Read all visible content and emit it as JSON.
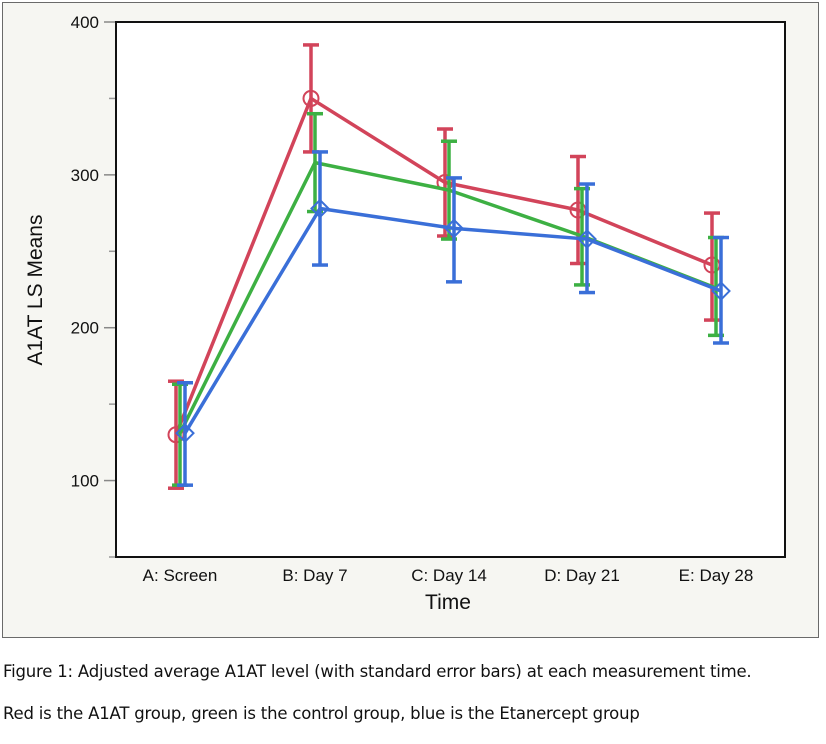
{
  "chart_data": {
    "type": "line",
    "title": "",
    "xlabel": "Time",
    "ylabel": "A1AT LS Means",
    "categories": [
      "A: Screen",
      "B: Day 7",
      "C: Day 14",
      "D: Day 21",
      "E: Day 28"
    ],
    "ylim": [
      50,
      400
    ],
    "yticks": [
      100,
      200,
      300,
      400
    ],
    "yminor_ticks": [
      50,
      150,
      250,
      350
    ],
    "grid": false,
    "legend": "none",
    "error_bars": "standard error",
    "series": [
      {
        "name": "A1AT group",
        "color": "#d2445a",
        "marker": "circle",
        "values": [
          130,
          350,
          295,
          277,
          241
        ],
        "lower": [
          95,
          315,
          260,
          242,
          205
        ],
        "upper": [
          165,
          385,
          330,
          312,
          275
        ]
      },
      {
        "name": "Control group",
        "color": "#3db043",
        "marker": "none",
        "values": [
          131,
          308,
          290,
          260,
          226
        ],
        "lower": [
          97,
          276,
          258,
          228,
          195
        ],
        "upper": [
          163,
          340,
          322,
          291,
          259
        ]
      },
      {
        "name": "Etanercept group",
        "color": "#3a6fd8",
        "marker": "diamond",
        "values": [
          131,
          278,
          265,
          258,
          224
        ],
        "lower": [
          97,
          241,
          230,
          223,
          190
        ],
        "upper": [
          164,
          315,
          298,
          294,
          259
        ]
      }
    ]
  },
  "caption": {
    "line1": "Figure 1: Adjusted average A1AT level (with standard error bars) at each measurement time.",
    "line2": "Red is the A1AT group, green is the control group, blue is the Etanercept group"
  }
}
